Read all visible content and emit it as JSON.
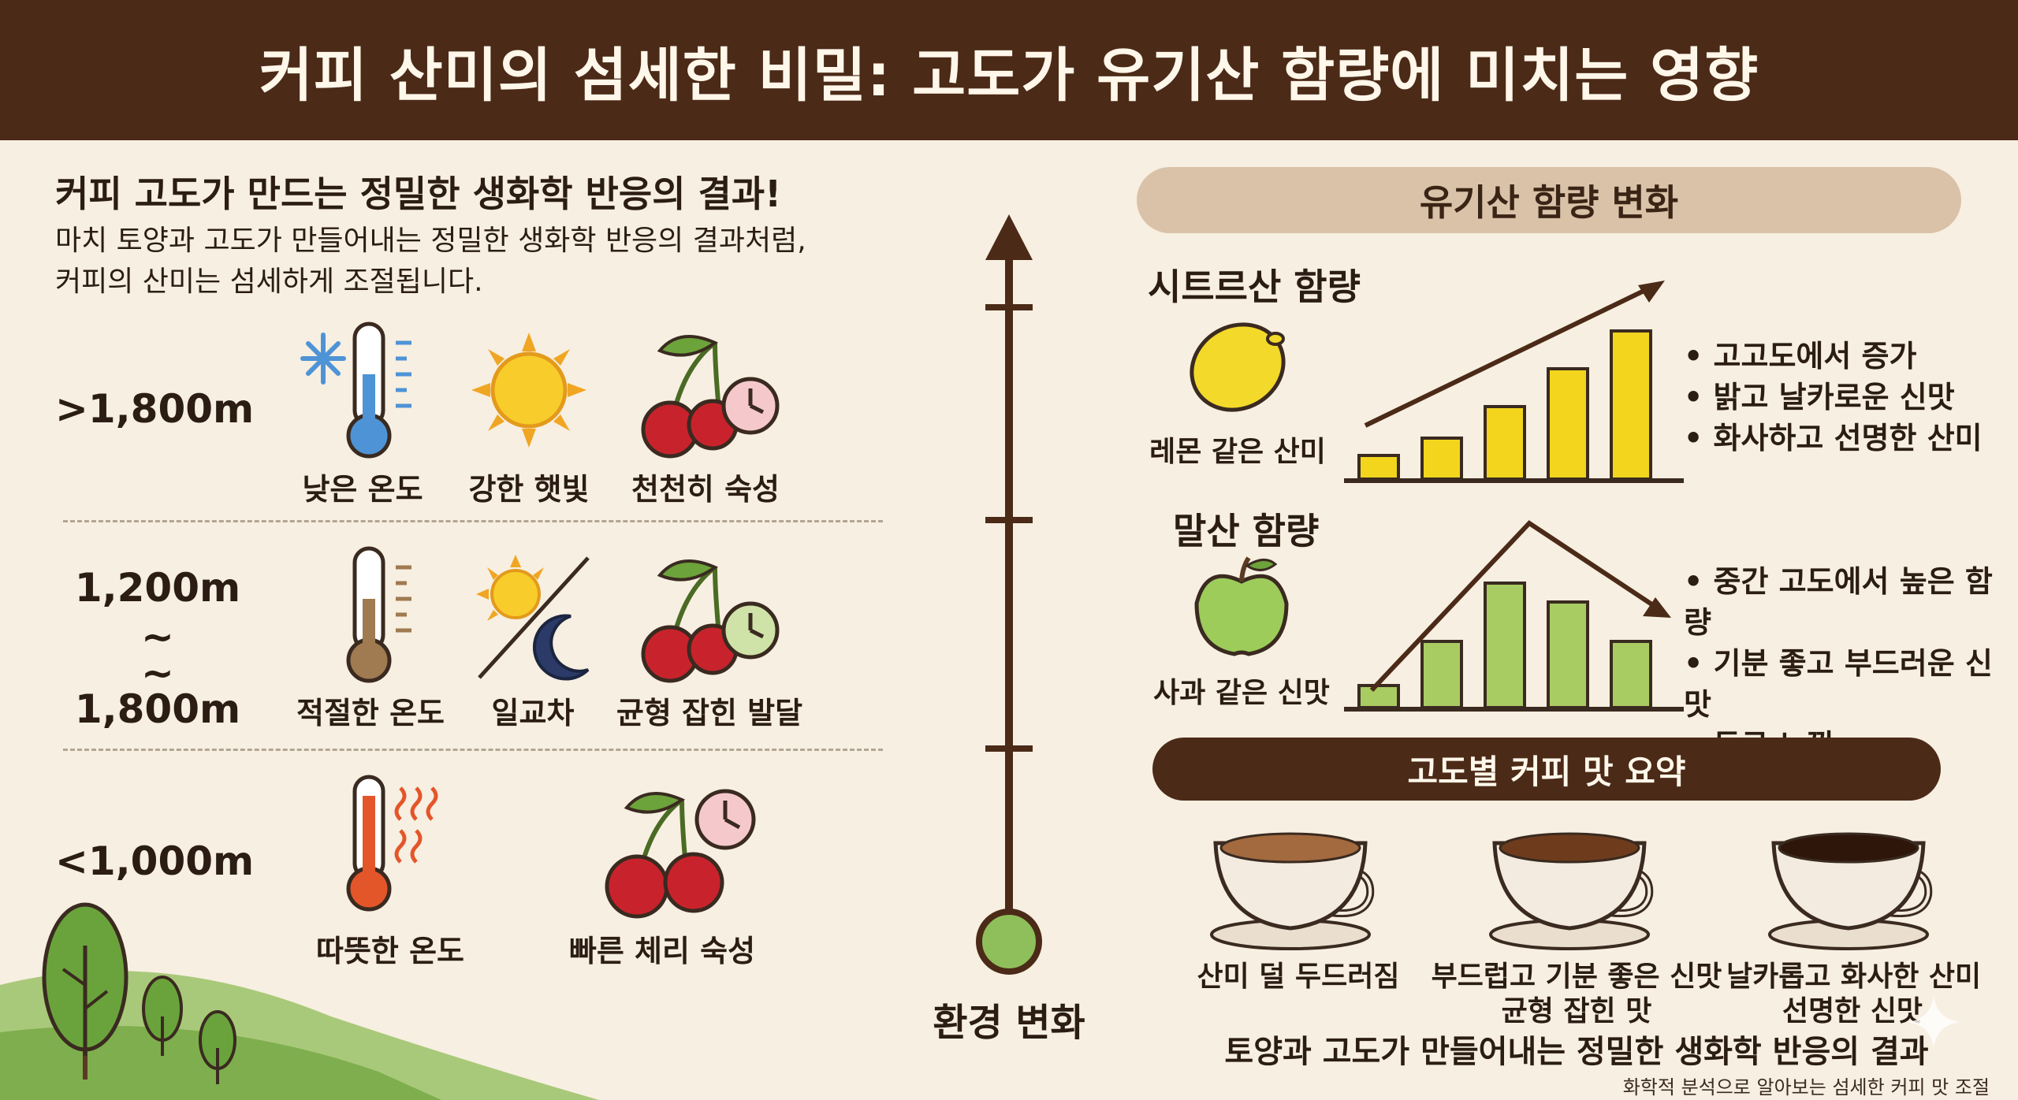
{
  "title": "커피 산미의 섬세한 비밀: 고도가 유기산 함량에 미치는 영향",
  "intro": {
    "heading": "커피 고도가 만드는 정밀한 생화학 반응의 결과!",
    "line1": "마치 토양과 고도가 만들어내는 정밀한 생화학 반응의 결과처럼,",
    "line2": "커피의 산미는 섬세하게 조절됩니다."
  },
  "tiers": [
    {
      "altitude": ">1,800m",
      "items": [
        {
          "label": "낮은 온도",
          "icon": "cold-thermometer-icon"
        },
        {
          "label": "강한 햇빛",
          "icon": "sun-icon"
        },
        {
          "label": "천천히 숙성",
          "icon": "cherry-slow-clock-icon"
        }
      ]
    },
    {
      "altitude_top": "1,200m ~",
      "altitude_mid": "~",
      "altitude_bottom": "1,800m",
      "items": [
        {
          "label": "적절한 온도",
          "icon": "moderate-thermometer-icon"
        },
        {
          "label": "일교차",
          "icon": "sun-moon-icon"
        },
        {
          "label": "균형 잡힌 발달",
          "icon": "cherry-balanced-clock-icon"
        }
      ]
    },
    {
      "altitude": "<1,000m",
      "items": [
        {
          "label": "따뜻한 온도",
          "icon": "hot-thermometer-icon"
        },
        {
          "label": "빠른 체리 숙성",
          "icon": "cherry-fast-clock-icon"
        }
      ]
    }
  ],
  "axis": {
    "label": "환경 변화"
  },
  "acids": {
    "header": "유기산 함량 변화",
    "citric": {
      "title": "시트르산 함량",
      "caption": "레몬 같은 산미",
      "bullets": [
        "고고도에서 증가",
        "밝고 날카로운 신맛",
        "화사하고 선명한 산미"
      ],
      "color": "#f2d51c"
    },
    "malic": {
      "title": "말산 함량",
      "caption": "사과 같은 신맛",
      "bullets": [
        "중간 고도에서 높은 함량",
        "기분 좋고 부드러운 신맛",
        "둥근 느낌"
      ],
      "color": "#a9cc62"
    }
  },
  "summary": {
    "header": "고도별 커피 맛 요약",
    "cups": [
      {
        "line1": "산미 덜 두드러짐",
        "line2": ""
      },
      {
        "line1": "부드럽고 기분 좋은 신맛",
        "line2": "균형 잡힌 맛"
      },
      {
        "line1": "날카롭고 화사한 산미",
        "line2": "선명한 신맛"
      }
    ]
  },
  "footer": {
    "main": "토양과 고도가 만들어내는 정밀한 생화학 반응의 결과",
    "small": "화학적 분석으로 알아보는 섬세한 커피 맛 조절"
  },
  "colors": {
    "brown": "#4b2a17",
    "cream": "#f7efe1",
    "tan": "#dac2a8",
    "green": "#8fbf5a"
  }
}
